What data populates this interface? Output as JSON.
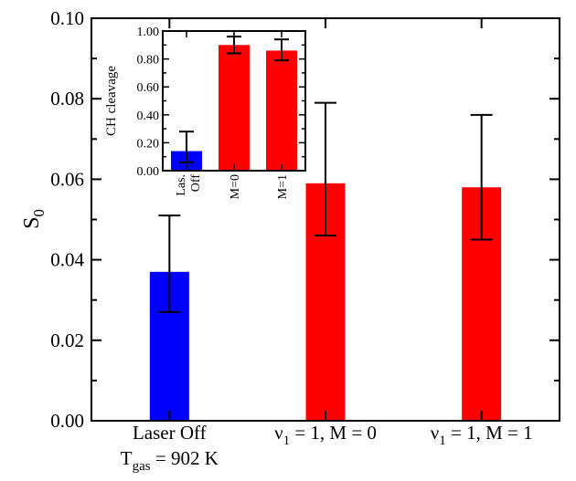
{
  "chart_data": [
    {
      "type": "bar",
      "categories": [
        {
          "line1": "Laser Off",
          "line2_base": "T",
          "line2_sub": "gas",
          "line2_rest": " = 902 K"
        },
        {
          "nu": "ν",
          "nu_sub": "1",
          "rest": " = 1, M = 0"
        },
        {
          "nu": "ν",
          "nu_sub": "1",
          "rest": " = 1, M = 1"
        }
      ],
      "values": [
        0.037,
        0.059,
        0.058
      ],
      "error_low": [
        0.027,
        0.046,
        0.045
      ],
      "error_high": [
        0.051,
        0.079,
        0.076
      ],
      "colors": [
        "#0000ff",
        "#ff0000",
        "#ff0000"
      ],
      "ylabel_base": "S",
      "ylabel_sub": "0",
      "ylim": [
        0,
        0.1
      ],
      "yticks": [
        "0.00",
        "0.02",
        "0.04",
        "0.06",
        "0.08",
        "0.10"
      ],
      "grid": false
    },
    {
      "type": "bar",
      "inset": true,
      "categories": [
        {
          "line1": "Las.",
          "line2": "Off"
        },
        {
          "line1": "M=0"
        },
        {
          "line1": "M=1"
        }
      ],
      "values": [
        0.14,
        0.9,
        0.86
      ],
      "error_low": [
        0.06,
        0.84,
        0.79
      ],
      "error_high": [
        0.28,
        0.96,
        0.94
      ],
      "colors": [
        "#0000ff",
        "#ff0000",
        "#ff0000"
      ],
      "ylabel": "CH cleavage",
      "ylim": [
        0,
        1.0
      ],
      "yticks": [
        "0.00",
        "0.20",
        "0.40",
        "0.60",
        "0.80",
        "1.00"
      ],
      "grid": false
    }
  ]
}
